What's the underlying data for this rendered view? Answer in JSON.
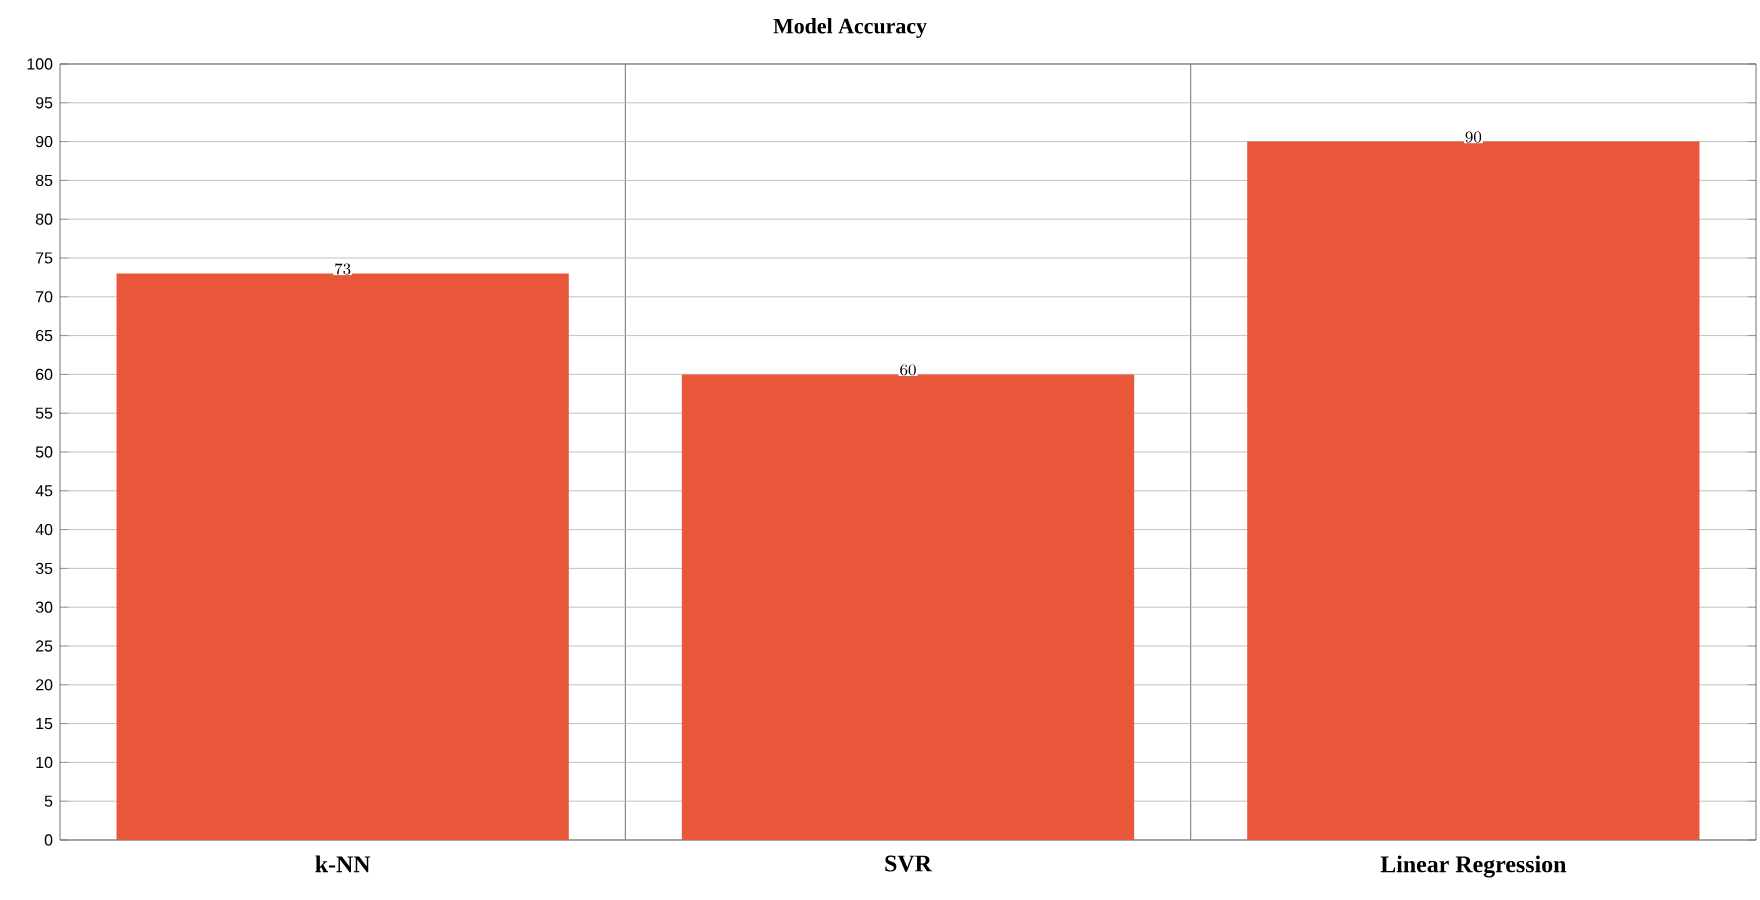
{
  "chart_data": {
    "type": "bar",
    "title": "Model Accuracy",
    "categories": [
      "k-NN",
      "SVR",
      "Linear Regression"
    ],
    "values": [
      73,
      60,
      90
    ],
    "color": "#e8573a",
    "ylim": [
      0,
      100
    ],
    "yticks": [
      0,
      5,
      10,
      15,
      20,
      25,
      30,
      35,
      40,
      45,
      50,
      55,
      60,
      65,
      70,
      75,
      80,
      85,
      90,
      95,
      100
    ],
    "grid": true,
    "data_labels": true
  }
}
